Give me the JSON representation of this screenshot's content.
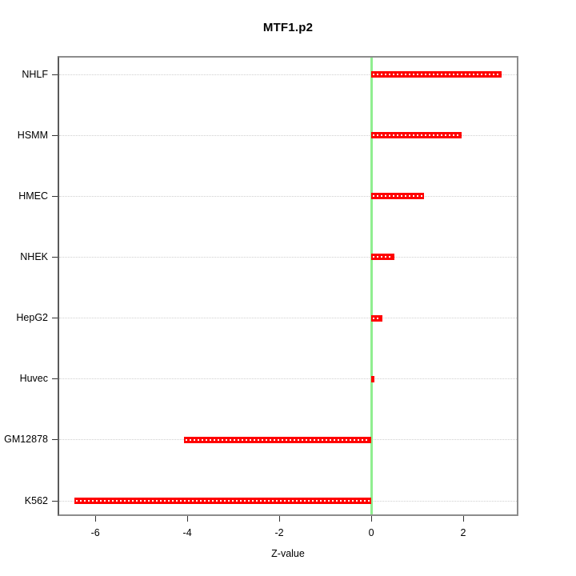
{
  "chart_data": {
    "type": "bar",
    "orientation": "horizontal",
    "title": "MTF1.p2",
    "xlabel": "Z-value",
    "ylabel": "",
    "categories": [
      "NHLF",
      "HSMM",
      "HMEC",
      "NHEK",
      "HepG2",
      "Huvec",
      "GM12878",
      "K562"
    ],
    "values": [
      2.83,
      1.97,
      1.15,
      0.5,
      0.25,
      0.07,
      -4.07,
      -6.45
    ],
    "x_ticks": [
      -6,
      -4,
      -2,
      0,
      2
    ],
    "x_tick_labels": [
      "-6",
      "-4",
      "-2",
      "0",
      "2"
    ],
    "xlim": [
      -6.82,
      3.2
    ],
    "zero_line_x": 0,
    "grid": true,
    "legend": null,
    "colors": {
      "bar": "#ff0000",
      "bar_center_dash": "#ffffff",
      "zero_line": "#90ee90",
      "gridline": "#cfcfcf",
      "box_border": "#8c8c8c",
      "tick": "#333333",
      "text": "#000000",
      "background": "#ffffff"
    }
  }
}
